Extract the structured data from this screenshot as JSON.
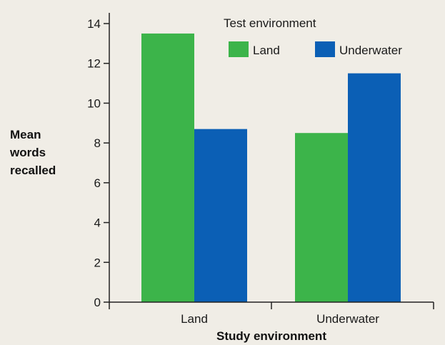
{
  "chart_data": {
    "type": "bar",
    "title": "",
    "xlabel": "Study environment",
    "ylabel_lines": [
      "Mean",
      "words",
      "recalled"
    ],
    "categories": [
      "Land",
      "Underwater"
    ],
    "series": [
      {
        "name": "Land",
        "values": [
          13.5,
          8.5
        ]
      },
      {
        "name": "Underwater",
        "values": [
          8.7,
          11.5
        ]
      }
    ],
    "ylim": [
      0,
      14
    ],
    "yticks": [
      "0",
      "2",
      "4",
      "6",
      "8",
      "10",
      "12",
      "14"
    ],
    "legend": {
      "title": "Test environment",
      "placement": "top-right"
    },
    "grid": false
  },
  "colors": {
    "background": "#f0ede6",
    "Land": "#3cb44a",
    "Underwater": "#0b5fb5",
    "axis": "#222222"
  }
}
